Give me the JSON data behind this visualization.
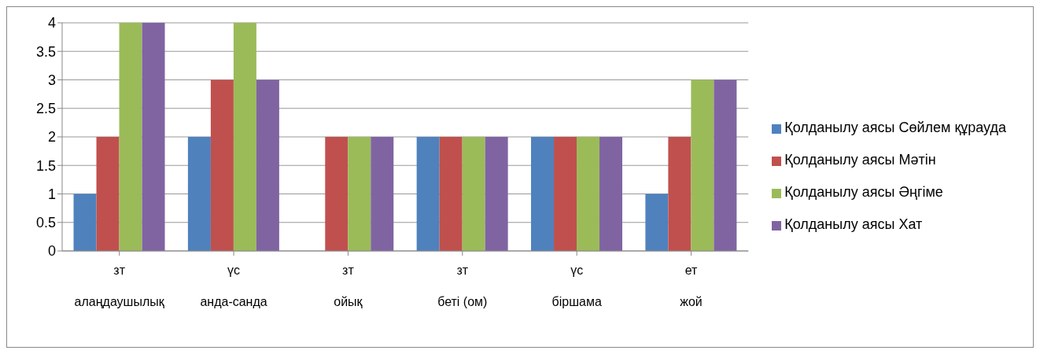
{
  "chart_data": {
    "type": "bar",
    "categories": [
      "зт\nалаңдаушылық",
      "үс\nанда-санда",
      "зт\nойық",
      "зт\nбеті (ом)",
      "үс\nбіршама",
      "ет\nжой"
    ],
    "series": [
      {
        "name": "Қолданылу аясы Сөйлем құрауда",
        "color": "#4f81bd",
        "values": [
          1,
          2,
          0,
          2,
          2,
          1
        ]
      },
      {
        "name": "Қолданылу аясы Мәтін",
        "color": "#c0504d",
        "values": [
          2,
          3,
          2,
          2,
          2,
          2
        ]
      },
      {
        "name": "Қолданылу аясы Әңгіме",
        "color": "#9bbb59",
        "values": [
          4,
          4,
          2,
          2,
          2,
          3
        ]
      },
      {
        "name": "Қолданылу аясы Хат",
        "color": "#8064a2",
        "values": [
          4,
          3,
          2,
          2,
          2,
          3
        ]
      }
    ],
    "ylim": [
      0,
      4
    ],
    "yticks": [
      0,
      0.5,
      1,
      1.5,
      2,
      2.5,
      3,
      3.5,
      4
    ],
    "grid": "y",
    "legend": "right"
  }
}
